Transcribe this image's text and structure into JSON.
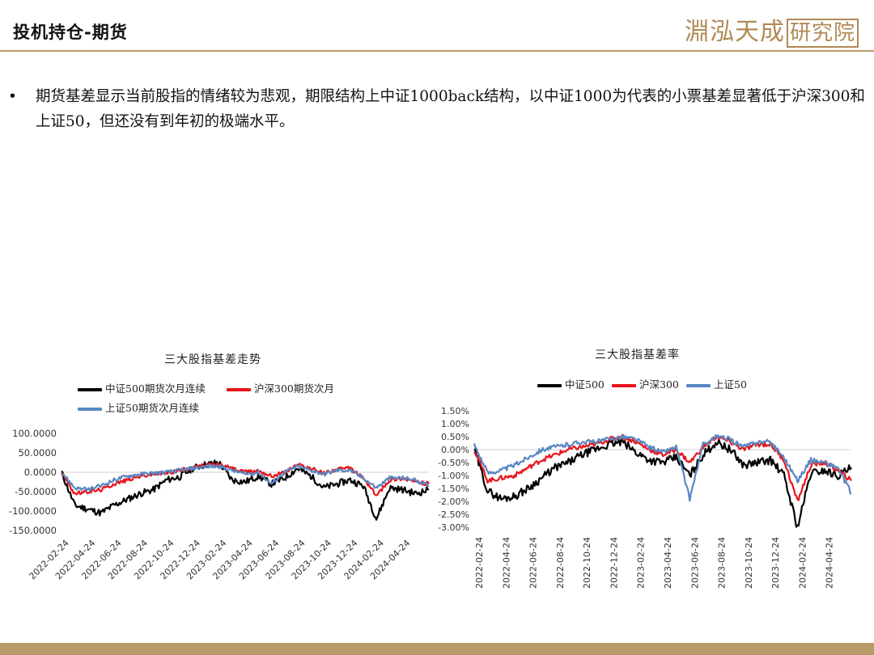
{
  "header": {
    "title": "投机持仓-期货"
  },
  "logo": {
    "text_plain": "淵泓天成",
    "text_box": "研究院"
  },
  "bullet": {
    "text": "期货基差显示当前股指的情绪较为悲观，期限结构上中证1000back结构，以中证1000为代表的小票基差显著低于沪深300和上证50，但还没有到年初的极端水平。"
  },
  "colors": {
    "accent": "#b89a6a",
    "series_black": "#000000",
    "series_red": "#e8141b",
    "series_blue": "#5a87c3"
  },
  "chart_data": [
    {
      "type": "line",
      "title": "三大股指基差走势",
      "y_tick_labels": [
        "100.0000",
        "50.0000",
        "0.0000",
        "-50.0000",
        "-100.0000",
        "-150.0000"
      ],
      "ylim": [
        -150,
        100
      ],
      "x_tick_labels": [
        "2022-02-24",
        "2022-04-24",
        "2022-06-24",
        "2022-08-24",
        "2022-10-24",
        "2022-12-24",
        "2023-02-24",
        "2023-04-24",
        "2023-06-24",
        "2023-08-24",
        "2023-10-24",
        "2023-12-24",
        "2024-02-24",
        "2024-04-24"
      ],
      "x_months": [
        "2022-02",
        "2022-03",
        "2022-04",
        "2022-05",
        "2022-06",
        "2022-07",
        "2022-08",
        "2022-09",
        "2022-10",
        "2022-11",
        "2022-12",
        "2023-01",
        "2023-02",
        "2023-03",
        "2023-04",
        "2023-05",
        "2023-06",
        "2023-07",
        "2023-08",
        "2023-09",
        "2023-10",
        "2023-11",
        "2023-12",
        "2024-01",
        "2024-02",
        "2024-03",
        "2024-04",
        "2024-05",
        "2024-06"
      ],
      "legend": "top",
      "series": [
        {
          "name": "中证500期货次月连续",
          "color": "#000000",
          "values": [
            0,
            -85,
            -95,
            -105,
            -85,
            -70,
            -55,
            -45,
            -20,
            -12,
            10,
            20,
            25,
            -20,
            -25,
            -10,
            -30,
            -15,
            10,
            -10,
            -40,
            -30,
            -20,
            -35,
            -120,
            -40,
            -45,
            -55,
            -45
          ]
        },
        {
          "name": "沪深300期货次月",
          "color": "#e8141b",
          "values": [
            0,
            -55,
            -50,
            -45,
            -30,
            -20,
            -10,
            -5,
            -2,
            5,
            12,
            18,
            20,
            10,
            0,
            5,
            -10,
            0,
            20,
            10,
            -2,
            8,
            10,
            -15,
            -60,
            -20,
            -15,
            -25,
            -30
          ]
        },
        {
          "name": "上证50期货次月连续",
          "color": "#5a87c3",
          "values": [
            0,
            -40,
            -45,
            -35,
            -20,
            -10,
            -5,
            -2,
            0,
            5,
            10,
            15,
            15,
            5,
            -5,
            0,
            -30,
            0,
            15,
            5,
            -5,
            5,
            5,
            -15,
            -40,
            -15,
            -15,
            -20,
            -35
          ]
        }
      ]
    },
    {
      "type": "line",
      "title": "三大股指基差率",
      "y_tick_labels": [
        "1.50%",
        "1.00%",
        "0.50%",
        "0.00%",
        "-0.50%",
        "-1.00%",
        "-1.50%",
        "-2.00%",
        "-2.50%",
        "-3.00%"
      ],
      "ylim": [
        -3.0,
        1.5
      ],
      "x_tick_labels": [
        "2022-02-24",
        "2022-04-24",
        "2022-06-24",
        "2022-08-24",
        "2022-10-24",
        "2022-12-24",
        "2023-02-24",
        "2023-04-24",
        "2023-06-24",
        "2023-08-24",
        "2023-10-24",
        "2023-12-24",
        "2024-02-24",
        "2024-04-24"
      ],
      "x_months": [
        "2022-02",
        "2022-03",
        "2022-04",
        "2022-05",
        "2022-06",
        "2022-07",
        "2022-08",
        "2022-09",
        "2022-10",
        "2022-11",
        "2022-12",
        "2023-01",
        "2023-02",
        "2023-03",
        "2023-04",
        "2023-05",
        "2023-06",
        "2023-07",
        "2023-08",
        "2023-09",
        "2023-10",
        "2023-11",
        "2023-12",
        "2024-01",
        "2024-02",
        "2024-03",
        "2024-04",
        "2024-05",
        "2024-06"
      ],
      "legend": "top",
      "series": [
        {
          "name": "中证500",
          "color": "#000000",
          "values": [
            0.0,
            -1.6,
            -1.9,
            -1.8,
            -1.5,
            -1.1,
            -0.7,
            -0.5,
            -0.2,
            0.0,
            0.2,
            0.3,
            -0.1,
            -0.4,
            -0.5,
            -0.3,
            -1.0,
            -0.2,
            0.3,
            0.0,
            -0.6,
            -0.5,
            -0.4,
            -1.0,
            -3.0,
            -0.9,
            -0.8,
            -1.0,
            -0.7
          ]
        },
        {
          "name": "沪深300",
          "color": "#e8141b",
          "values": [
            0.0,
            -1.2,
            -1.1,
            -1.0,
            -0.7,
            -0.4,
            -0.2,
            0.0,
            0.1,
            0.2,
            0.4,
            0.5,
            0.3,
            0.0,
            -0.2,
            0.0,
            -0.5,
            0.1,
            0.5,
            0.3,
            0.0,
            0.2,
            0.2,
            -0.4,
            -2.0,
            -0.6,
            -0.5,
            -0.8,
            -1.2
          ]
        },
        {
          "name": "上证50",
          "color": "#5a87c3",
          "values": [
            0.2,
            -0.9,
            -0.8,
            -0.6,
            -0.3,
            0.0,
            0.1,
            0.2,
            0.3,
            0.3,
            0.4,
            0.5,
            0.4,
            0.1,
            -0.1,
            0.1,
            -1.9,
            0.2,
            0.5,
            0.4,
            0.1,
            0.3,
            0.3,
            -0.3,
            -1.2,
            -0.4,
            -0.5,
            -0.7,
            -1.7
          ]
        }
      ]
    }
  ]
}
